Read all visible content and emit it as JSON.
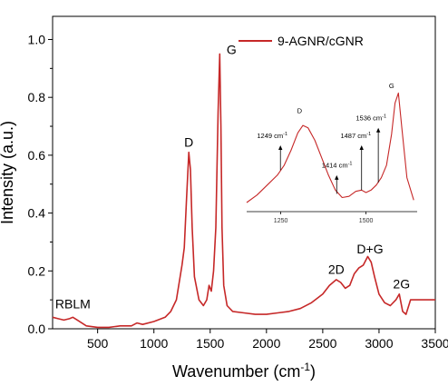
{
  "chart_data": {
    "type": "line",
    "xlabel": "Wavenumber (cm",
    "xlabel_sup": "-1",
    "xlabel_end": ")",
    "ylabel": "Intensity (a.u.)",
    "xlim": [
      100,
      3500
    ],
    "ylim": [
      0,
      1.08
    ],
    "x_ticks": [
      500,
      1000,
      1500,
      2000,
      2500,
      3000,
      3500
    ],
    "x_tick_labels": [
      "500",
      "1000",
      "1500",
      "2000",
      "2500",
      "3000",
      "3500"
    ],
    "y_ticks": [
      0.0,
      0.2,
      0.4,
      0.6,
      0.8,
      1.0
    ],
    "y_tick_labels": [
      "0.0",
      "0.2",
      "0.4",
      "0.6",
      "0.8",
      "1.0"
    ],
    "line_color": "#c62828",
    "legend": {
      "position": "top-right",
      "entries": [
        "9-AGNR/cGNR"
      ]
    },
    "series": [
      {
        "name": "9-AGNR/cGNR",
        "x": [
          100,
          150,
          200,
          250,
          280,
          320,
          400,
          500,
          600,
          700,
          800,
          850,
          900,
          1000,
          1100,
          1150,
          1200,
          1250,
          1270,
          1290,
          1310,
          1325,
          1340,
          1360,
          1400,
          1440,
          1470,
          1490,
          1510,
          1530,
          1550,
          1570,
          1585,
          1595,
          1605,
          1620,
          1650,
          1700,
          1800,
          1900,
          2000,
          2100,
          2200,
          2300,
          2400,
          2500,
          2560,
          2620,
          2660,
          2700,
          2740,
          2780,
          2820,
          2860,
          2900,
          2930,
          2960,
          3000,
          3050,
          3100,
          3150,
          3180,
          3210,
          3240,
          3280,
          3350,
          3420,
          3500
        ],
        "y": [
          0.04,
          0.035,
          0.03,
          0.035,
          0.04,
          0.03,
          0.01,
          0.005,
          0.005,
          0.01,
          0.01,
          0.02,
          0.015,
          0.025,
          0.04,
          0.06,
          0.1,
          0.22,
          0.28,
          0.45,
          0.61,
          0.55,
          0.35,
          0.18,
          0.1,
          0.08,
          0.1,
          0.15,
          0.13,
          0.2,
          0.35,
          0.75,
          0.95,
          0.7,
          0.35,
          0.15,
          0.08,
          0.06,
          0.055,
          0.05,
          0.05,
          0.055,
          0.06,
          0.07,
          0.09,
          0.12,
          0.15,
          0.17,
          0.16,
          0.14,
          0.15,
          0.19,
          0.21,
          0.22,
          0.25,
          0.23,
          0.18,
          0.12,
          0.09,
          0.08,
          0.1,
          0.12,
          0.06,
          0.05,
          0.1,
          0.1,
          0.1,
          0.1
        ]
      }
    ],
    "annotations": [
      {
        "text": "RBLM",
        "x": 280,
        "y": 0.07
      },
      {
        "text": "D",
        "x": 1310,
        "y": 0.63
      },
      {
        "text": "G",
        "x": 1690,
        "y": 0.95
      },
      {
        "text": "2D",
        "x": 2620,
        "y": 0.19
      },
      {
        "text": "D+G",
        "x": 2920,
        "y": 0.26
      },
      {
        "text": "2G",
        "x": 3200,
        "y": 0.14
      }
    ],
    "inset": {
      "xlim": [
        1150,
        1650
      ],
      "ylim": [
        0,
        1
      ],
      "x_ticks": [
        1250,
        1500
      ],
      "x_tick_labels": [
        "1250",
        "1500"
      ],
      "x": [
        1150,
        1180,
        1210,
        1240,
        1260,
        1280,
        1300,
        1315,
        1330,
        1350,
        1370,
        1390,
        1410,
        1430,
        1450,
        1470,
        1487,
        1500,
        1515,
        1530,
        1545,
        1560,
        1575,
        1585,
        1595,
        1605,
        1620,
        1640
      ],
      "y": [
        0.0,
        0.06,
        0.14,
        0.22,
        0.3,
        0.42,
        0.56,
        0.62,
        0.6,
        0.5,
        0.36,
        0.22,
        0.1,
        0.04,
        0.05,
        0.09,
        0.1,
        0.08,
        0.1,
        0.14,
        0.2,
        0.3,
        0.55,
        0.8,
        0.88,
        0.6,
        0.2,
        0.02
      ],
      "annotations": [
        {
          "text": "D",
          "x": 1305,
          "y": 0.72
        },
        {
          "text": "G",
          "x": 1575,
          "y": 0.92
        },
        {
          "text": "1249 cm",
          "x": 1225,
          "y": 0.52,
          "arrow_x": 1249,
          "arrow_from": 0.46,
          "arrow_to": 0.26
        },
        {
          "text": "1414 cm",
          "x": 1415,
          "y": 0.28,
          "arrow_x": 1414,
          "arrow_from": 0.22,
          "arrow_to": 0.07
        },
        {
          "text": "1487 cm",
          "x": 1470,
          "y": 0.52,
          "arrow_x": 1487,
          "arrow_from": 0.46,
          "arrow_to": 0.1
        },
        {
          "text": "1536 cm",
          "x": 1515,
          "y": 0.66,
          "arrow_x": 1536,
          "arrow_from": 0.6,
          "arrow_to": 0.16
        }
      ],
      "sup": "-1"
    }
  }
}
